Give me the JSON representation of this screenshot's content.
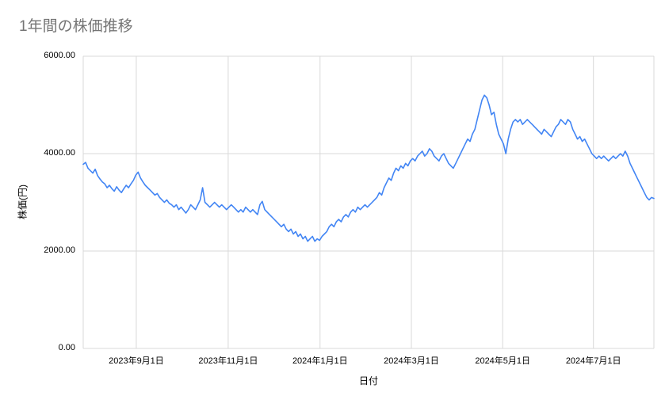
{
  "title": "1年間の株価推移",
  "chart_data": {
    "type": "line",
    "title": "1年間の株価推移",
    "xlabel": "日付",
    "ylabel": "株価(円)",
    "ylim": [
      0,
      6000
    ],
    "grid": true,
    "legend": "none",
    "line_color": "#4285f4",
    "grid_color": "#d9d9d9",
    "y_tick_labels": [
      "6000.00",
      "4000.00",
      "2000.00",
      "0.00"
    ],
    "x_tick_labels": [
      "2023年9月1日",
      "2023年11月1日",
      "2024年1月1日",
      "2024年3月1日",
      "2024年5月1日",
      "2024年7月1日"
    ],
    "values": [
      3780,
      3820,
      3700,
      3650,
      3600,
      3680,
      3550,
      3480,
      3420,
      3380,
      3300,
      3350,
      3280,
      3230,
      3320,
      3250,
      3200,
      3280,
      3350,
      3300,
      3380,
      3450,
      3560,
      3620,
      3500,
      3420,
      3350,
      3300,
      3250,
      3200,
      3150,
      3180,
      3100,
      3050,
      3000,
      3050,
      2980,
      2950,
      2900,
      2950,
      2850,
      2900,
      2840,
      2780,
      2850,
      2950,
      2900,
      2850,
      2950,
      3050,
      3300,
      3000,
      2950,
      2900,
      2950,
      3000,
      2950,
      2900,
      2950,
      2900,
      2850,
      2900,
      2950,
      2900,
      2850,
      2800,
      2850,
      2800,
      2900,
      2850,
      2800,
      2850,
      2800,
      2750,
      2950,
      3020,
      2850,
      2800,
      2750,
      2700,
      2650,
      2600,
      2550,
      2500,
      2550,
      2450,
      2400,
      2450,
      2350,
      2400,
      2300,
      2350,
      2250,
      2300,
      2200,
      2250,
      2300,
      2200,
      2250,
      2220,
      2300,
      2350,
      2400,
      2500,
      2550,
      2500,
      2600,
      2650,
      2600,
      2700,
      2750,
      2700,
      2800,
      2850,
      2800,
      2900,
      2850,
      2900,
      2950,
      2900,
      2950,
      3000,
      3050,
      3100,
      3200,
      3150,
      3300,
      3400,
      3500,
      3450,
      3600,
      3700,
      3650,
      3750,
      3700,
      3800,
      3750,
      3850,
      3900,
      3850,
      3950,
      4000,
      4050,
      3950,
      4000,
      4100,
      4050,
      3950,
      3900,
      3850,
      3950,
      4000,
      3900,
      3800,
      3750,
      3700,
      3800,
      3900,
      4000,
      4100,
      4200,
      4300,
      4250,
      4400,
      4500,
      4700,
      4900,
      5100,
      5200,
      5150,
      5000,
      4800,
      4850,
      4600,
      4400,
      4300,
      4200,
      4000,
      4300,
      4500,
      4650,
      4700,
      4650,
      4700,
      4600,
      4650,
      4700,
      4650,
      4600,
      4550,
      4500,
      4450,
      4400,
      4500,
      4450,
      4400,
      4350,
      4450,
      4550,
      4600,
      4700,
      4650,
      4600,
      4700,
      4650,
      4500,
      4400,
      4300,
      4350,
      4250,
      4300,
      4200,
      4100,
      4000,
      3950,
      3900,
      3950,
      3900,
      3950,
      3900,
      3850,
      3900,
      3950,
      3900,
      3950,
      4000,
      3950,
      4050,
      3950,
      3800,
      3700,
      3600,
      3500,
      3400,
      3300,
      3200,
      3100,
      3050,
      3100,
      3080
    ]
  }
}
